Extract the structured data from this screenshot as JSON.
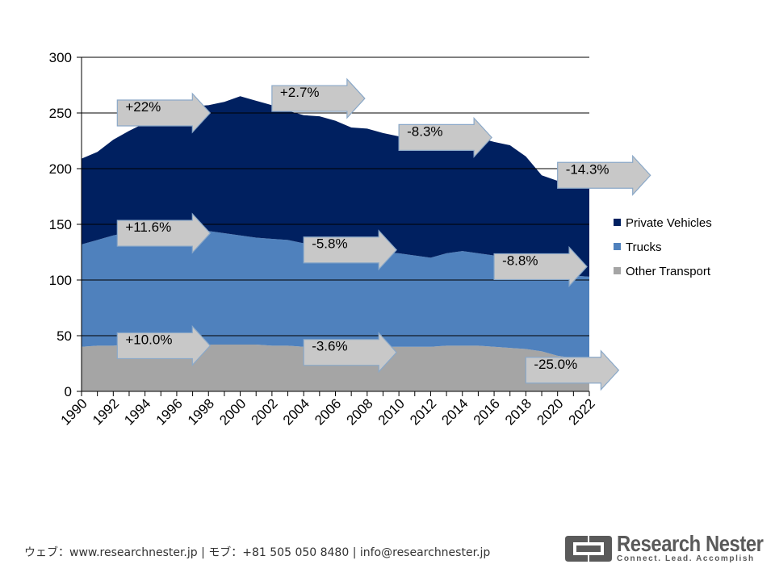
{
  "chart_data": {
    "type": "area",
    "stacked": true,
    "x": [
      1990,
      1991,
      1992,
      1993,
      1994,
      1995,
      1996,
      1997,
      1998,
      1999,
      2000,
      2001,
      2002,
      2003,
      2004,
      2005,
      2006,
      2007,
      2008,
      2009,
      2010,
      2011,
      2012,
      2013,
      2014,
      2015,
      2016,
      2017,
      2018,
      2019,
      2020,
      2021,
      2022
    ],
    "x_tick_labels": [
      "1990",
      "1992",
      "1994",
      "1996",
      "1998",
      "2000",
      "2002",
      "2004",
      "2006",
      "2008",
      "2010",
      "2012",
      "2014",
      "2016",
      "2018",
      "2020",
      "2022"
    ],
    "y_ticks": [
      "0",
      "50",
      "100",
      "150",
      "200",
      "250",
      "300"
    ],
    "ylim": [
      0,
      300
    ],
    "grid": true,
    "legend_position": "right",
    "series": [
      {
        "name": "Other Transport",
        "color": "#a5a5a5",
        "values": [
          40,
          41,
          41,
          42,
          42,
          42,
          42,
          42,
          42,
          42,
          42,
          42,
          41,
          41,
          40,
          40,
          40,
          40,
          40,
          40,
          40,
          40,
          40,
          41,
          41,
          41,
          40,
          39,
          38,
          36,
          32,
          30,
          29
        ]
      },
      {
        "name": "Trucks",
        "color": "#4f81bd",
        "values": [
          92,
          95,
          99,
          101,
          99,
          99,
          99,
          99,
          102,
          100,
          98,
          96,
          96,
          95,
          93,
          92,
          93,
          91,
          88,
          85,
          84,
          82,
          80,
          83,
          85,
          83,
          82,
          82,
          80,
          76,
          73,
          74,
          74
        ]
      },
      {
        "name": "Private Vehicles",
        "color": "#002060",
        "values": [
          77,
          79,
          86,
          91,
          100,
          108,
          113,
          115,
          113,
          118,
          125,
          123,
          120,
          116,
          115,
          115,
          110,
          106,
          108,
          107,
          105,
          104,
          106,
          110,
          104,
          104,
          102,
          100,
          93,
          82,
          84,
          85,
          87
        ]
      }
    ],
    "annotations": [
      {
        "label": "+22%",
        "row": "Private Vehicles",
        "start": 1992,
        "y": 250
      },
      {
        "label": "+2.7%",
        "row": "Private Vehicles",
        "start": 2002,
        "y": 263
      },
      {
        "label": "-8.3%",
        "row": "Private Vehicles",
        "start": 2010,
        "y": 228
      },
      {
        "label": "-14.3%",
        "row": "Private Vehicles",
        "start": 2020,
        "y": 194
      },
      {
        "label": "+11.6%",
        "row": "Trucks",
        "start": 1992,
        "y": 142
      },
      {
        "label": "-5.8%",
        "row": "Trucks",
        "start": 2004,
        "y": 127
      },
      {
        "label": "-8.8%",
        "row": "Trucks",
        "start": 2016,
        "y": 112
      },
      {
        "label": "+10.0%",
        "row": "Other Transport",
        "start": 1992,
        "y": 41
      },
      {
        "label": "-3.6%",
        "row": "Other Transport",
        "start": 2004,
        "y": 35
      },
      {
        "label": "-25.0%",
        "row": "Other Transport",
        "start": 2018,
        "y": 19
      }
    ]
  },
  "footer": {
    "contact": "ウェブ：www.researchnester.jp | モブ：+81 505 050 8480 | info@researchnester.jp"
  },
  "logo": {
    "name": "Research Nester",
    "tagline": "Connect. Lead. Accomplish"
  }
}
